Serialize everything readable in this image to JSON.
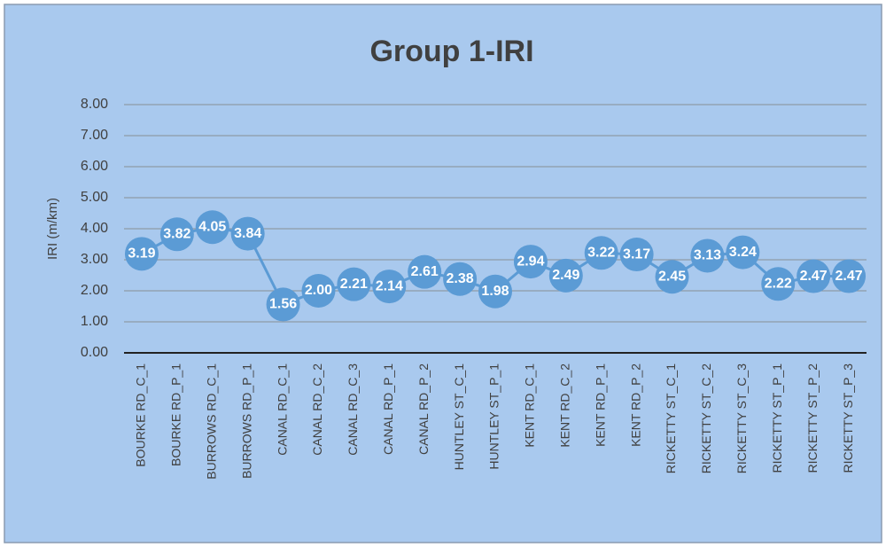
{
  "chart_data": {
    "type": "line",
    "title": "Group 1-IRI",
    "y_label": "IRI (m/km)",
    "categories": [
      "BOURKE RD_C_1",
      "BOURKE RD_P_1",
      "BURROWS RD_C_1",
      "BURROWS RD_P_1",
      "CANAL RD_C_1",
      "CANAL RD_C_2",
      "CANAL RD_C_3",
      "CANAL RD_P_1",
      "CANAL RD_P_2",
      "HUNTLEY ST_C_1",
      "HUNTLEY ST_P_1",
      "KENT RD_C_1",
      "KENT RD_C_2",
      "KENT RD_P_1",
      "KENT RD_P_2",
      "RICKETTY ST_C_1",
      "RICKETTY ST_C_2",
      "RICKETTY ST_C_3",
      "RICKETTY ST_P_1",
      "RICKETTY ST_P_2",
      "RICKETTY ST_P_3"
    ],
    "values": [
      3.19,
      3.82,
      4.05,
      3.84,
      1.56,
      2.0,
      2.21,
      2.14,
      2.61,
      2.38,
      1.98,
      2.94,
      2.49,
      3.22,
      3.17,
      2.45,
      3.13,
      3.24,
      2.22,
      2.47,
      2.47
    ],
    "value_labels": [
      "3.19",
      "3.82",
      "4.05",
      "3.84",
      "1.56",
      "2.00",
      "2.21",
      "2.14",
      "2.61",
      "2.38",
      "1.98",
      "2.94",
      "2.49",
      "3.22",
      "3.17",
      "2.45",
      "3.13",
      "3.24",
      "2.22",
      "2.47",
      "2.47"
    ],
    "color": "#5b9bd5",
    "ylim": [
      0,
      8
    ],
    "yticks": [
      {
        "value": 0,
        "label": "0.00"
      },
      {
        "value": 1,
        "label": "1.00"
      },
      {
        "value": 2,
        "label": "2.00"
      },
      {
        "value": 3,
        "label": "3.00"
      },
      {
        "value": 4,
        "label": "4.00"
      },
      {
        "value": 5,
        "label": "5.00"
      },
      {
        "value": 6,
        "label": "6.00"
      },
      {
        "value": 7,
        "label": "7.00"
      },
      {
        "value": 8,
        "label": "8.00"
      }
    ],
    "grid": true
  }
}
